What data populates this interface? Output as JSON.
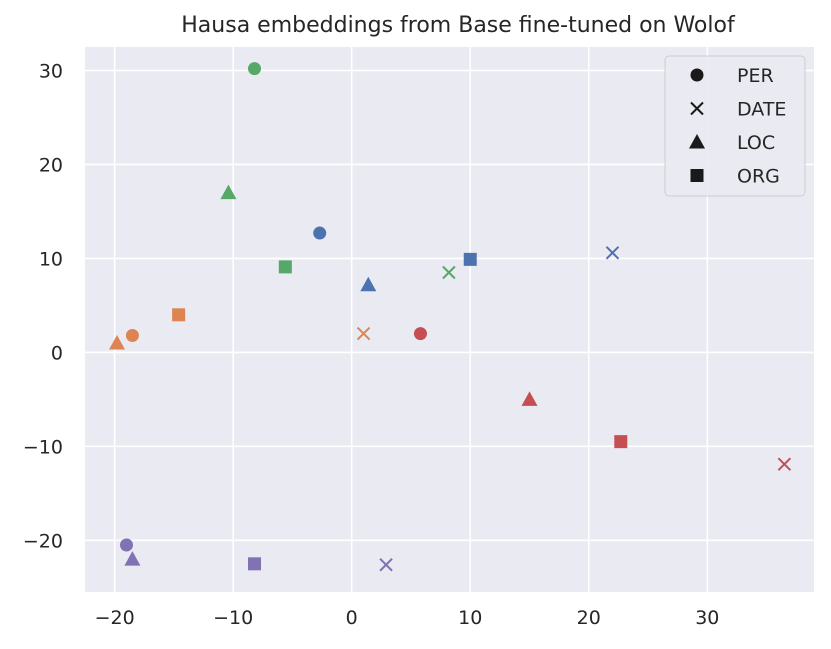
{
  "chart_data": {
    "type": "scatter",
    "title": "Hausa embeddings from Base fine-tuned on Wolof",
    "xlabel": "",
    "ylabel": "",
    "xlim": [
      -22.5,
      39
    ],
    "ylim": [
      -25.5,
      32.5
    ],
    "x_ticks": [
      -20,
      -10,
      0,
      10,
      20,
      30
    ],
    "y_ticks": [
      -20,
      -10,
      0,
      10,
      20,
      30
    ],
    "x_tick_labels": [
      "−20",
      "−10",
      "0",
      "10",
      "20",
      "30"
    ],
    "y_tick_labels": [
      "−20",
      "−10",
      "0",
      "10",
      "20",
      "30"
    ],
    "grid": true,
    "legend_position": "top-right",
    "legend": [
      {
        "label": "PER",
        "marker": "circle"
      },
      {
        "label": "DATE",
        "marker": "x"
      },
      {
        "label": "LOC",
        "marker": "triangle"
      },
      {
        "label": "ORG",
        "marker": "square"
      }
    ],
    "colors": {
      "blue": "#4c72b0",
      "orange": "#dd8452",
      "green": "#55a868",
      "red": "#c44e52",
      "purple": "#8172b3",
      "legend_marker": "#1a1a1a",
      "background": "#eaeaf2",
      "grid": "#ffffff"
    },
    "points": [
      {
        "marker": "circle",
        "color": "green",
        "x": -8.2,
        "y": 30.2
      },
      {
        "marker": "triangle",
        "color": "green",
        "x": -10.4,
        "y": 17.0
      },
      {
        "marker": "square",
        "color": "green",
        "x": -5.6,
        "y": 9.1
      },
      {
        "marker": "x",
        "color": "green",
        "x": 8.2,
        "y": 8.5
      },
      {
        "marker": "circle",
        "color": "blue",
        "x": -2.7,
        "y": 12.7
      },
      {
        "marker": "triangle",
        "color": "blue",
        "x": 1.4,
        "y": 7.2
      },
      {
        "marker": "square",
        "color": "blue",
        "x": 10.0,
        "y": 9.9
      },
      {
        "marker": "x",
        "color": "blue",
        "x": 22.0,
        "y": 10.6
      },
      {
        "marker": "circle",
        "color": "orange",
        "x": -18.5,
        "y": 1.8
      },
      {
        "marker": "triangle",
        "color": "orange",
        "x": -19.8,
        "y": 1.0
      },
      {
        "marker": "square",
        "color": "orange",
        "x": -14.6,
        "y": 4.0
      },
      {
        "marker": "x",
        "color": "orange",
        "x": 1.0,
        "y": 2.0
      },
      {
        "marker": "circle",
        "color": "red",
        "x": 5.8,
        "y": 2.0
      },
      {
        "marker": "triangle",
        "color": "red",
        "x": 15.0,
        "y": -5.0
      },
      {
        "marker": "square",
        "color": "red",
        "x": 22.7,
        "y": -9.5
      },
      {
        "marker": "x",
        "color": "red",
        "x": 36.5,
        "y": -11.9
      },
      {
        "marker": "circle",
        "color": "purple",
        "x": -19.0,
        "y": -20.5
      },
      {
        "marker": "triangle",
        "color": "purple",
        "x": -18.5,
        "y": -22.0
      },
      {
        "marker": "square",
        "color": "purple",
        "x": -8.2,
        "y": -22.5
      },
      {
        "marker": "x",
        "color": "purple",
        "x": 2.9,
        "y": -22.6
      }
    ]
  }
}
